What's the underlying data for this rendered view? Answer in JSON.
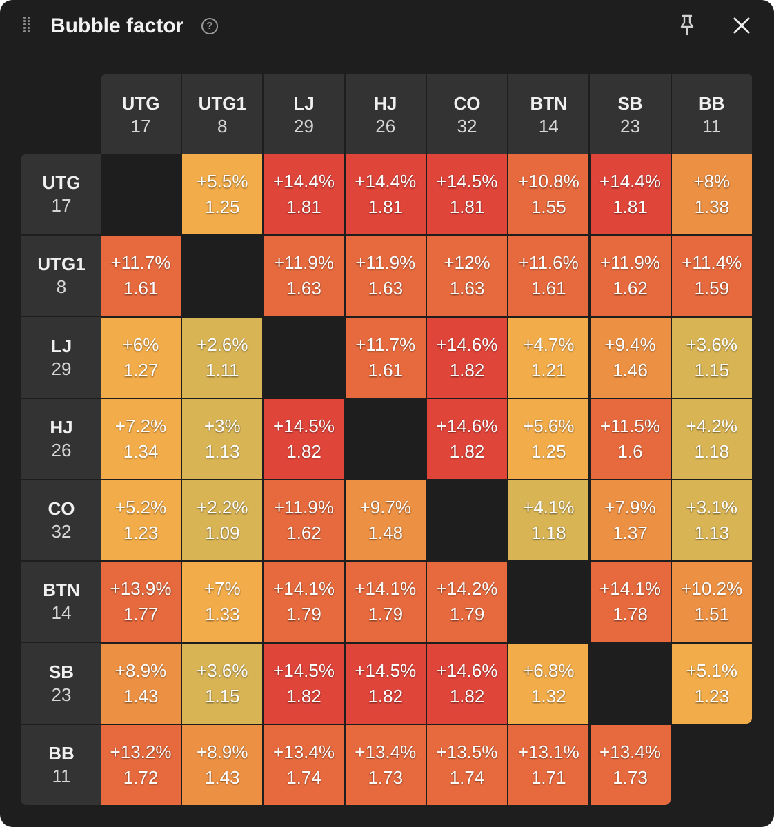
{
  "window": {
    "title": "Bubble factor",
    "help_icon": "question-circle-icon",
    "pin_icon": "pin-icon",
    "close_icon": "close-icon"
  },
  "players": [
    {
      "pos": "UTG",
      "stack": "17"
    },
    {
      "pos": "UTG1",
      "stack": "8"
    },
    {
      "pos": "LJ",
      "stack": "29"
    },
    {
      "pos": "HJ",
      "stack": "26"
    },
    {
      "pos": "CO",
      "stack": "32"
    },
    {
      "pos": "BTN",
      "stack": "14"
    },
    {
      "pos": "SB",
      "stack": "23"
    },
    {
      "pos": "BB",
      "stack": "11"
    }
  ],
  "matrix": [
    [
      null,
      {
        "pct": "+5.5%",
        "bf": "1.25"
      },
      {
        "pct": "+14.4%",
        "bf": "1.81"
      },
      {
        "pct": "+14.4%",
        "bf": "1.81"
      },
      {
        "pct": "+14.5%",
        "bf": "1.81"
      },
      {
        "pct": "+10.8%",
        "bf": "1.55"
      },
      {
        "pct": "+14.4%",
        "bf": "1.81"
      },
      {
        "pct": "+8%",
        "bf": "1.38"
      }
    ],
    [
      {
        "pct": "+11.7%",
        "bf": "1.61"
      },
      null,
      {
        "pct": "+11.9%",
        "bf": "1.63"
      },
      {
        "pct": "+11.9%",
        "bf": "1.63"
      },
      {
        "pct": "+12%",
        "bf": "1.63"
      },
      {
        "pct": "+11.6%",
        "bf": "1.61"
      },
      {
        "pct": "+11.9%",
        "bf": "1.62"
      },
      {
        "pct": "+11.4%",
        "bf": "1.59"
      }
    ],
    [
      {
        "pct": "+6%",
        "bf": "1.27"
      },
      {
        "pct": "+2.6%",
        "bf": "1.11"
      },
      null,
      {
        "pct": "+11.7%",
        "bf": "1.61"
      },
      {
        "pct": "+14.6%",
        "bf": "1.82"
      },
      {
        "pct": "+4.7%",
        "bf": "1.21"
      },
      {
        "pct": "+9.4%",
        "bf": "1.46"
      },
      {
        "pct": "+3.6%",
        "bf": "1.15"
      }
    ],
    [
      {
        "pct": "+7.2%",
        "bf": "1.34"
      },
      {
        "pct": "+3%",
        "bf": "1.13"
      },
      {
        "pct": "+14.5%",
        "bf": "1.82"
      },
      null,
      {
        "pct": "+14.6%",
        "bf": "1.82"
      },
      {
        "pct": "+5.6%",
        "bf": "1.25"
      },
      {
        "pct": "+11.5%",
        "bf": "1.6"
      },
      {
        "pct": "+4.2%",
        "bf": "1.18"
      }
    ],
    [
      {
        "pct": "+5.2%",
        "bf": "1.23"
      },
      {
        "pct": "+2.2%",
        "bf": "1.09"
      },
      {
        "pct": "+11.9%",
        "bf": "1.62"
      },
      {
        "pct": "+9.7%",
        "bf": "1.48"
      },
      null,
      {
        "pct": "+4.1%",
        "bf": "1.18"
      },
      {
        "pct": "+7.9%",
        "bf": "1.37"
      },
      {
        "pct": "+3.1%",
        "bf": "1.13"
      }
    ],
    [
      {
        "pct": "+13.9%",
        "bf": "1.77"
      },
      {
        "pct": "+7%",
        "bf": "1.33"
      },
      {
        "pct": "+14.1%",
        "bf": "1.79"
      },
      {
        "pct": "+14.1%",
        "bf": "1.79"
      },
      {
        "pct": "+14.2%",
        "bf": "1.79"
      },
      null,
      {
        "pct": "+14.1%",
        "bf": "1.78"
      },
      {
        "pct": "+10.2%",
        "bf": "1.51"
      }
    ],
    [
      {
        "pct": "+8.9%",
        "bf": "1.43"
      },
      {
        "pct": "+3.6%",
        "bf": "1.15"
      },
      {
        "pct": "+14.5%",
        "bf": "1.82"
      },
      {
        "pct": "+14.5%",
        "bf": "1.82"
      },
      {
        "pct": "+14.6%",
        "bf": "1.82"
      },
      {
        "pct": "+6.8%",
        "bf": "1.32"
      },
      null,
      {
        "pct": "+5.1%",
        "bf": "1.23"
      }
    ],
    [
      {
        "pct": "+13.2%",
        "bf": "1.72"
      },
      {
        "pct": "+8.9%",
        "bf": "1.43"
      },
      {
        "pct": "+13.4%",
        "bf": "1.74"
      },
      {
        "pct": "+13.4%",
        "bf": "1.73"
      },
      {
        "pct": "+13.5%",
        "bf": "1.74"
      },
      {
        "pct": "+13.1%",
        "bf": "1.71"
      },
      {
        "pct": "+13.4%",
        "bf": "1.73"
      },
      null
    ]
  ],
  "colors": {
    "background": "#1e1e1e",
    "header_bg": "#333333",
    "low": "#d8b455",
    "mid_low": "#f2ac4a",
    "mid": "#ec9044",
    "high": "#e66a3e",
    "max": "#e0453a"
  }
}
